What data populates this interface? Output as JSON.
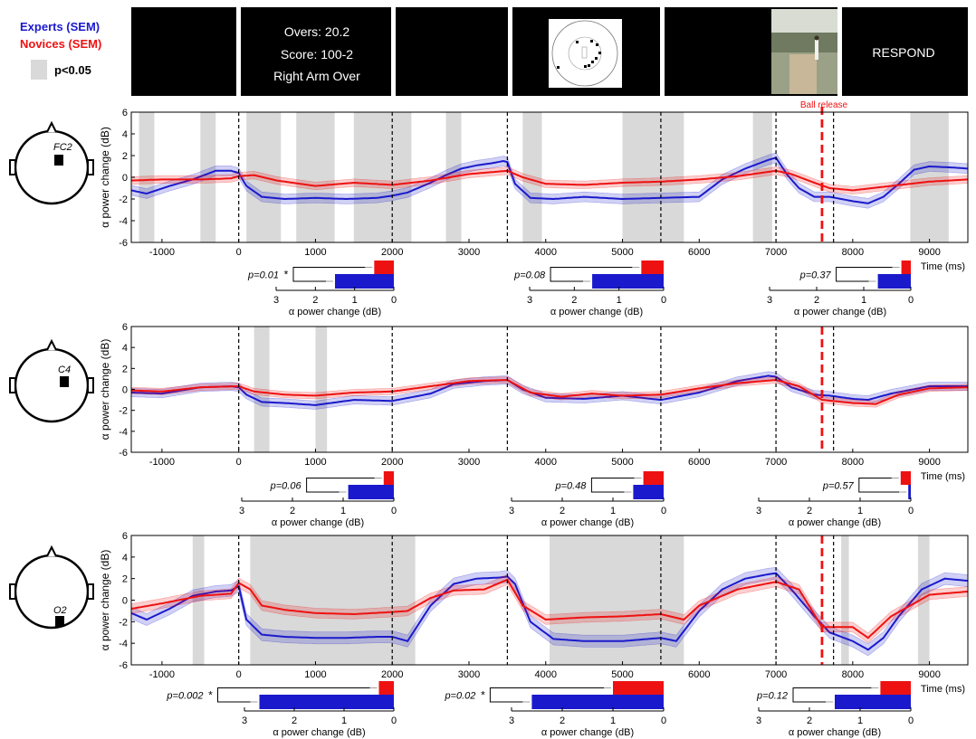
{
  "legend": {
    "experts": "Experts (SEM)",
    "novices": "Novices (SEM)",
    "significance": "p<0.05",
    "experts_color": "#1a1acc",
    "novices_color": "#ee1111",
    "significance_color": "#d9d9d9"
  },
  "timeline": {
    "info_lines": [
      "Overs: 20.2",
      "Score: 100-2",
      "Right Arm Over"
    ],
    "respond": "RESPOND"
  },
  "ball_release_label": "Ball release",
  "chart_data": [
    {
      "type": "line",
      "electrode": "FC2",
      "ylabel": "α power change (dB)",
      "xlabel": "Time (ms)",
      "xlim": [
        -1400,
        9500
      ],
      "ylim": [
        -6,
        6
      ],
      "xticks": [
        -1000,
        0,
        1000,
        2000,
        3000,
        4000,
        5000,
        6000,
        7000,
        8000,
        9000
      ],
      "yticks": [
        -6,
        -4,
        -2,
        0,
        2,
        4,
        6
      ],
      "event_lines": [
        0,
        2000,
        3500,
        5500,
        7000,
        7750
      ],
      "ball_release": 7600,
      "significance_windows": [
        [
          -1300,
          -1100
        ],
        [
          -500,
          -300
        ],
        [
          100,
          550
        ],
        [
          750,
          1250
        ],
        [
          1500,
          2250
        ],
        [
          2700,
          2900
        ],
        [
          3700,
          3950
        ],
        [
          5000,
          5800
        ],
        [
          6700,
          6950
        ],
        [
          8750,
          9250
        ]
      ],
      "series": [
        {
          "name": "Experts (SEM)",
          "sem": 0.45,
          "x": [
            -1400,
            -1200,
            -900,
            -600,
            -300,
            -100,
            0,
            100,
            300,
            600,
            1000,
            1400,
            1800,
            2000,
            2200,
            2500,
            2700,
            2900,
            3100,
            3300,
            3450,
            3500,
            3600,
            3800,
            4100,
            4500,
            5000,
            5500,
            6000,
            6300,
            6600,
            6900,
            7000,
            7150,
            7300,
            7500,
            7700,
            8000,
            8200,
            8400,
            8600,
            8800,
            9000,
            9300,
            9500
          ],
          "y": [
            -1.2,
            -1.5,
            -0.8,
            -0.2,
            0.6,
            0.6,
            0.4,
            -0.8,
            -1.8,
            -2.0,
            -1.9,
            -2.0,
            -1.9,
            -1.7,
            -1.4,
            -0.5,
            0.2,
            0.8,
            1.1,
            1.3,
            1.5,
            1.4,
            -0.6,
            -1.9,
            -2.0,
            -1.8,
            -2.0,
            -1.9,
            -1.8,
            -0.2,
            0.8,
            1.6,
            1.8,
            0.2,
            -1.0,
            -1.8,
            -1.8,
            -2.2,
            -2.4,
            -1.8,
            -0.6,
            0.7,
            1.0,
            0.9,
            0.8
          ]
        },
        {
          "name": "Novices (SEM)",
          "sem": 0.35,
          "x": [
            -1400,
            -1000,
            -500,
            -100,
            0,
            200,
            500,
            1000,
            1500,
            2000,
            2500,
            3000,
            3500,
            3700,
            4000,
            4500,
            5000,
            5500,
            6000,
            6500,
            7000,
            7200,
            7500,
            7700,
            8000,
            8500,
            9000,
            9500
          ],
          "y": [
            -0.3,
            -0.2,
            -0.2,
            -0.1,
            0.1,
            0.2,
            -0.3,
            -0.8,
            -0.5,
            -0.7,
            -0.3,
            0.3,
            0.6,
            0.0,
            -0.6,
            -0.7,
            -0.5,
            -0.4,
            -0.2,
            0.1,
            0.6,
            0.3,
            -0.5,
            -1.0,
            -1.2,
            -0.8,
            -0.4,
            -0.2
          ]
        }
      ],
      "inset": {
        "p_value": "p=0.01",
        "star": "*",
        "xlabel": "α power change (dB)",
        "xticks": [
          3,
          2,
          1,
          0
        ],
        "novices": 0.5,
        "experts": 1.5
      }
    },
    {
      "type": "line",
      "electrode": "C4",
      "ylabel": "α power change (dB)",
      "xlabel": "Time (ms)",
      "xlim": [
        -1400,
        9500
      ],
      "ylim": [
        -6,
        6
      ],
      "xticks": [
        -1000,
        0,
        1000,
        2000,
        3000,
        4000,
        5000,
        6000,
        7000,
        8000,
        9000
      ],
      "yticks": [
        -6,
        -4,
        -2,
        0,
        2,
        4,
        6
      ],
      "event_lines": [
        0,
        2000,
        3500,
        5500,
        7000,
        7750
      ],
      "ball_release": 7600,
      "significance_windows": [
        [
          200,
          400
        ],
        [
          1000,
          1150
        ]
      ],
      "series": [
        {
          "name": "Experts (SEM)",
          "sem": 0.4,
          "x": [
            -1400,
            -1000,
            -500,
            -100,
            0,
            100,
            300,
            600,
            1000,
            1500,
            2000,
            2500,
            2800,
            3200,
            3500,
            3700,
            4000,
            4500,
            5000,
            5500,
            6000,
            6500,
            6900,
            7000,
            7200,
            7500,
            7700,
            8000,
            8200,
            8500,
            9000,
            9500
          ],
          "y": [
            -0.3,
            -0.4,
            0.2,
            0.3,
            0.2,
            -0.5,
            -1.2,
            -1.3,
            -1.5,
            -1.0,
            -1.1,
            -0.4,
            0.5,
            0.8,
            0.9,
            0.0,
            -0.8,
            -0.9,
            -0.6,
            -1.0,
            -0.3,
            0.8,
            1.3,
            1.2,
            0.2,
            -0.5,
            -0.6,
            -0.9,
            -1.0,
            -0.4,
            0.3,
            0.3
          ]
        },
        {
          "name": "Novices (SEM)",
          "sem": 0.3,
          "x": [
            -1400,
            -1000,
            -500,
            0,
            200,
            600,
            1000,
            1500,
            2000,
            2500,
            3000,
            3500,
            3800,
            4200,
            4600,
            5000,
            5500,
            6000,
            6500,
            7000,
            7300,
            7600,
            8000,
            8300,
            8600,
            9000,
            9500
          ],
          "y": [
            -0.1,
            -0.2,
            0.2,
            0.3,
            -0.2,
            -0.5,
            -0.6,
            -0.3,
            -0.2,
            0.3,
            0.8,
            0.9,
            -0.3,
            -0.7,
            -0.4,
            -0.6,
            -0.5,
            0.1,
            0.6,
            0.9,
            0.3,
            -1.0,
            -1.3,
            -1.4,
            -0.5,
            0.1,
            0.2
          ]
        }
      ],
      "inset": {
        "p_value": "p=0.06",
        "star": "",
        "xlabel": "α power change (dB)",
        "xticks": [
          3,
          2,
          1,
          0
        ],
        "novices": 0.2,
        "experts": 0.9
      }
    },
    {
      "type": "line",
      "electrode": "O2",
      "ylabel": "α power change (dB)",
      "xlabel": "Time (ms)",
      "xlim": [
        -1400,
        9500
      ],
      "ylim": [
        -6,
        6
      ],
      "xticks": [
        -1000,
        0,
        1000,
        2000,
        3000,
        4000,
        5000,
        6000,
        7000,
        8000,
        9000
      ],
      "yticks": [
        -6,
        -4,
        -2,
        0,
        2,
        4,
        6
      ],
      "event_lines": [
        0,
        2000,
        3500,
        5500,
        7000,
        7750
      ],
      "ball_release": 7600,
      "significance_windows": [
        [
          -600,
          -450
        ],
        [
          150,
          2300
        ],
        [
          4050,
          5800
        ],
        [
          7850,
          7950
        ],
        [
          8850,
          9000
        ]
      ],
      "series": [
        {
          "name": "Experts (SEM)",
          "sem": 0.55,
          "x": [
            -1400,
            -1200,
            -900,
            -600,
            -300,
            -100,
            0,
            100,
            300,
            600,
            1000,
            1400,
            1800,
            2000,
            2200,
            2500,
            2800,
            3100,
            3400,
            3500,
            3600,
            3800,
            4100,
            4500,
            5000,
            5500,
            5700,
            6000,
            6300,
            6600,
            6900,
            7000,
            7200,
            7500,
            7700,
            8000,
            8200,
            8400,
            8600,
            8900,
            9200,
            9500
          ],
          "y": [
            -1.2,
            -1.8,
            -0.8,
            0.4,
            0.8,
            0.9,
            1.3,
            -1.8,
            -3.2,
            -3.4,
            -3.5,
            -3.5,
            -3.4,
            -3.4,
            -3.8,
            -0.5,
            1.5,
            2.0,
            2.1,
            2.2,
            1.5,
            -2.0,
            -3.6,
            -3.8,
            -3.8,
            -3.5,
            -3.8,
            -1.0,
            1.0,
            2.0,
            2.4,
            2.5,
            1.0,
            -1.5,
            -3.0,
            -3.8,
            -4.6,
            -3.5,
            -1.5,
            1.0,
            2.0,
            1.8
          ]
        },
        {
          "name": "Novices (SEM)",
          "sem": 0.45,
          "x": [
            -1400,
            -1000,
            -500,
            -100,
            0,
            150,
            300,
            600,
            1000,
            1500,
            2000,
            2200,
            2500,
            2800,
            3200,
            3500,
            3700,
            4000,
            4500,
            5000,
            5500,
            5800,
            6000,
            6500,
            7000,
            7300,
            7600,
            8000,
            8200,
            8500,
            9000,
            9500
          ],
          "y": [
            -0.8,
            -0.3,
            0.4,
            0.6,
            1.6,
            1.0,
            -0.5,
            -0.9,
            -1.2,
            -1.3,
            -1.1,
            -1.0,
            0.2,
            0.9,
            1.0,
            1.9,
            -0.5,
            -1.8,
            -1.6,
            -1.5,
            -1.3,
            -1.8,
            -0.5,
            1.0,
            1.7,
            1.0,
            -2.5,
            -2.5,
            -3.5,
            -1.5,
            0.5,
            0.8
          ]
        }
      ],
      "inset": {
        "p_value": "p=0.002",
        "star": "*",
        "xlabel": "α power change (dB)",
        "xticks": [
          3,
          2,
          1,
          0
        ],
        "novices": 0.3,
        "experts": 2.7
      }
    }
  ],
  "segment_insets": [
    [
      {
        "p_value": "p=0.08",
        "star": "",
        "novices": 0.5,
        "experts": 1.6
      },
      {
        "p_value": "p=0.37",
        "star": "",
        "novices": 0.2,
        "experts": 0.7
      }
    ],
    [
      {
        "p_value": "p=0.48",
        "star": "",
        "novices": 0.4,
        "experts": 0.6
      },
      {
        "p_value": "p=0.57",
        "star": "",
        "novices": 0.2,
        "experts": 0.05
      }
    ],
    [
      {
        "p_value": "p=0.02",
        "star": "*",
        "novices": 1.0,
        "experts": 2.6
      },
      {
        "p_value": "p=0.12",
        "star": "",
        "novices": 0.6,
        "experts": 1.5
      }
    ]
  ],
  "inset_xlabel": "α power change (dB)",
  "time_label": "Time (ms)"
}
